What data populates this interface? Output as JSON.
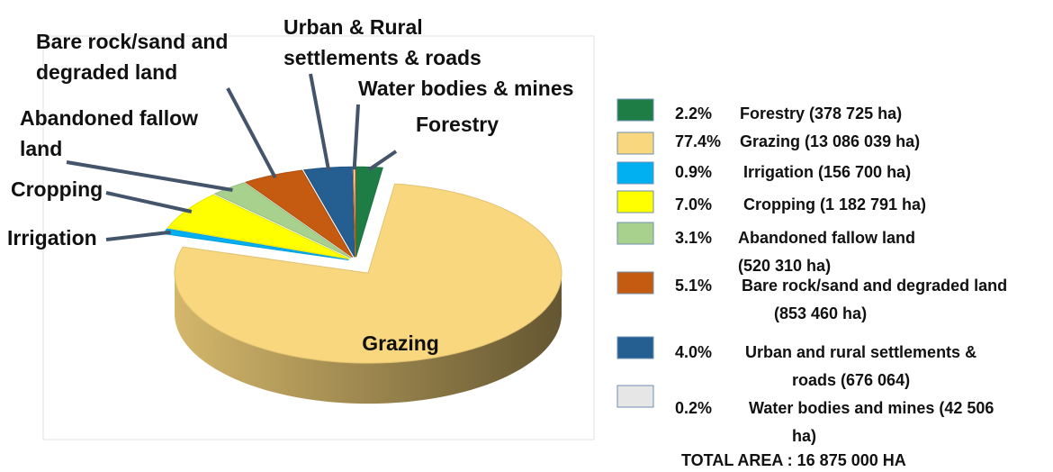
{
  "chart_data": {
    "type": "pie",
    "categories": [
      [
        "Forestry"
      ],
      [
        "Grazing"
      ],
      [
        "Irrigation"
      ],
      [
        "Cropping"
      ],
      [
        "Abandoned fallow",
        "land"
      ],
      [
        "Bare rock/sand and",
        "degraded land"
      ],
      [
        "Urban & Rural",
        "settlements & roads"
      ],
      [
        "Water bodies  & mines"
      ]
    ],
    "values": [
      2.2,
      77.4,
      0.9,
      7.0,
      3.1,
      5.1,
      4.0,
      0.2
    ],
    "value_labels": [
      "2.2%",
      "77.4%",
      "0.9%",
      "7.0%",
      "3.1%",
      "5.1%",
      "4.0%",
      "0.2%"
    ],
    "legend_labels": [
      [
        "Forestry (378 725 ha)"
      ],
      [
        "Grazing (13 086 039 ha)"
      ],
      [
        "Irrigation  (156 700 ha)"
      ],
      [
        "Cropping (1 182 791 ha)"
      ],
      [
        "Abandoned fallow land",
        "(520 310 ha)"
      ],
      [
        "Bare rock/sand and degraded land",
        "(853 460 ha)"
      ],
      [
        "Urban and rural settlements &",
        "roads (676 064)"
      ],
      [
        "Water bodies and mines (42 506",
        "ha)"
      ]
    ],
    "colors": [
      "#1e7d45",
      "#f9d77e",
      "#00b0f0",
      "#ffff00",
      "#a9d18e",
      "#c55a11",
      "#255e91",
      "#e7e6e6"
    ],
    "total": "TOTAL AREA : 16 875 000 HA"
  }
}
